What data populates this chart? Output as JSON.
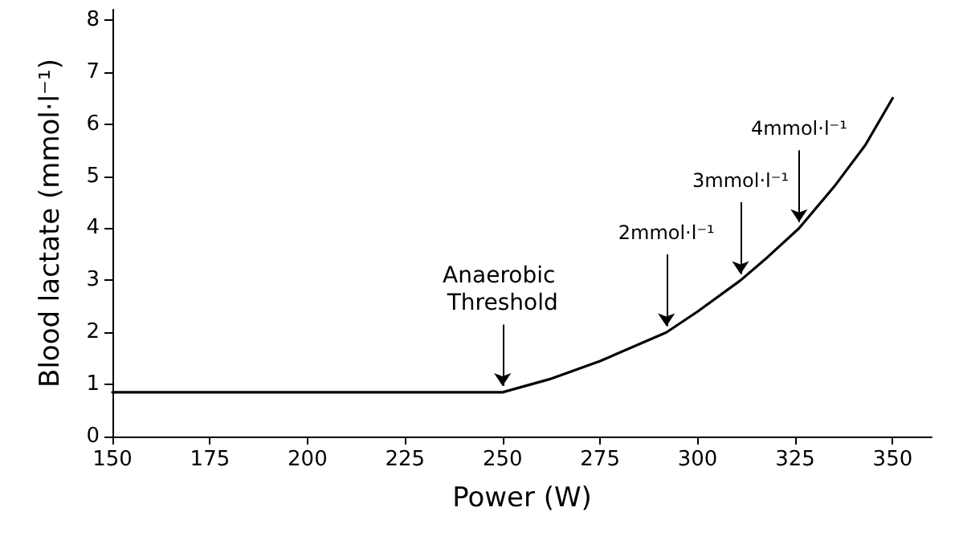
{
  "chart_data": {
    "type": "line",
    "xlabel": "Power (W)",
    "ylabel": "Blood lactate (mmol·l⁻¹)",
    "x": [
      150,
      200,
      250,
      262,
      275,
      292,
      300,
      311,
      318,
      326,
      335,
      343,
      350
    ],
    "series": [
      {
        "color": "#000000",
        "values": [
          0.85,
          0.85,
          0.85,
          1.1,
          1.45,
          2.0,
          2.4,
          3.0,
          3.45,
          4.0,
          4.8,
          5.6,
          6.5
        ]
      }
    ],
    "xlim": [
      150,
      360
    ],
    "xticks": [
      150,
      175,
      200,
      225,
      250,
      275,
      300,
      325,
      350
    ],
    "ylim": [
      0,
      8.2
    ],
    "yticks": [
      0,
      1,
      2,
      3,
      4,
      5,
      6,
      7,
      8
    ],
    "grid": false,
    "marker": "none",
    "line_style": "solid",
    "annotations": [
      {
        "text": "Anaerobic Threshold",
        "x": 250,
        "y": 0.85
      },
      {
        "text": "2mmol·l⁻¹",
        "x": 292,
        "y": 2.0
      },
      {
        "text": "3mmol·l⁻¹",
        "x": 311,
        "y": 3.0
      },
      {
        "text": "4mmol·l⁻¹",
        "x": 326,
        "y": 4.0
      }
    ]
  }
}
